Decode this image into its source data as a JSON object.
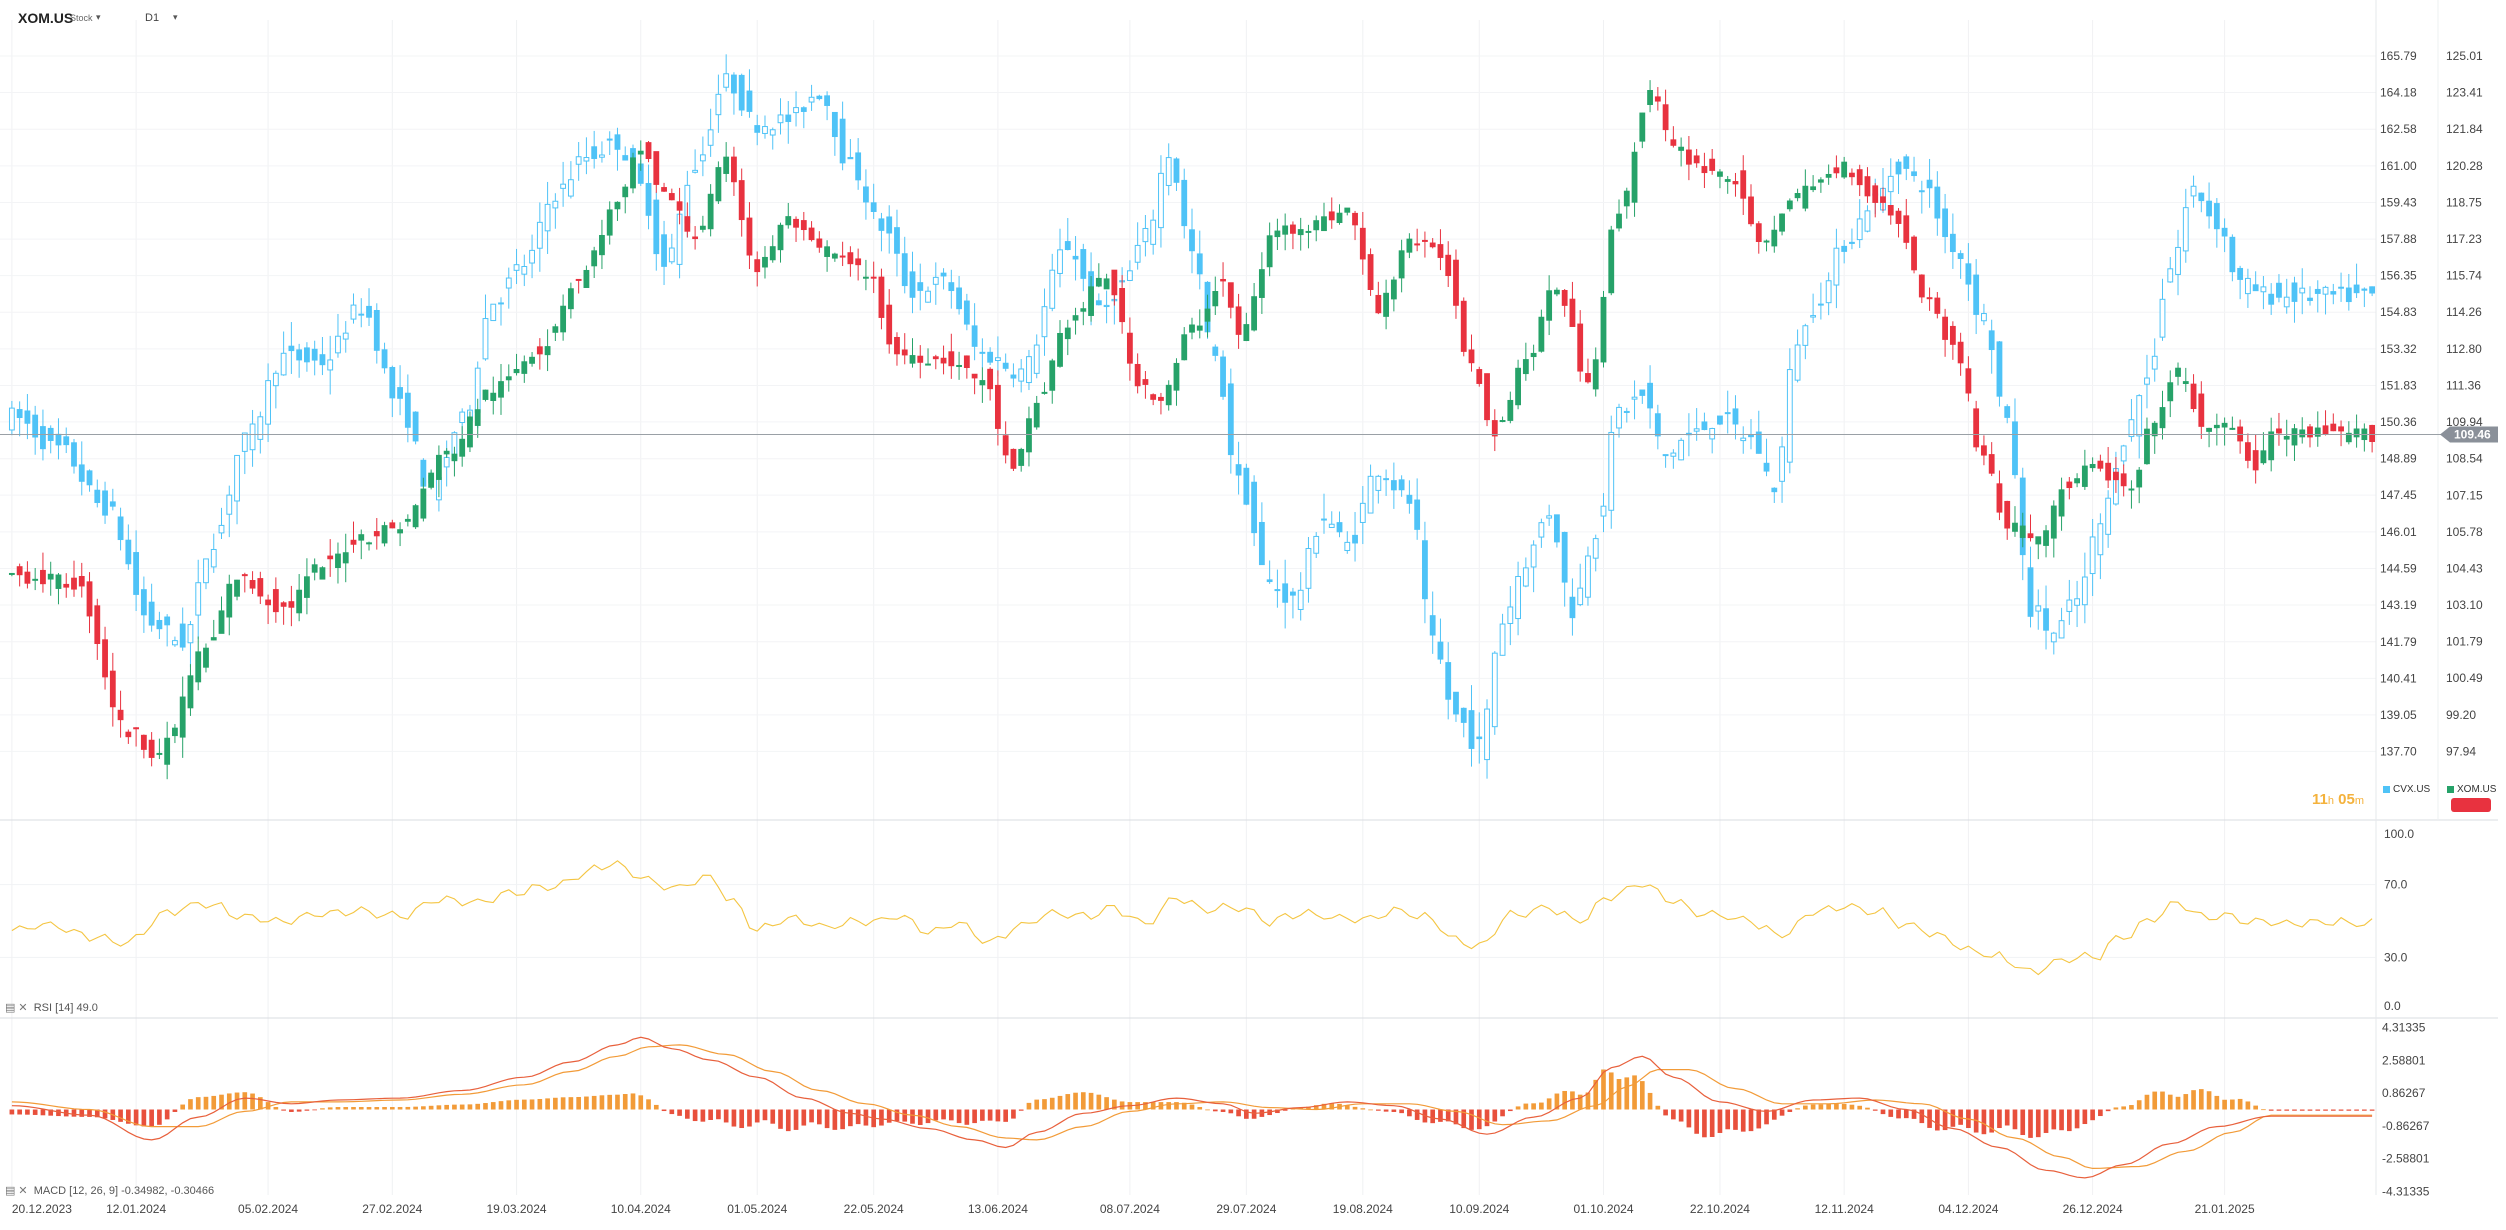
{
  "toolbar": {
    "symbol": "XOM.US",
    "type": "Stock",
    "interval": "D1"
  },
  "countdown": {
    "hours": "11",
    "h_unit": "h",
    "minutes": "05",
    "m_unit": "m"
  },
  "legend": [
    {
      "name": "CVX.US",
      "color": "#4fc3f7"
    },
    {
      "name": "XOM.US",
      "color": "#26a269"
    }
  ],
  "colors": {
    "up": "#26a269",
    "down": "#e8323f",
    "compare": "#4fc3f7",
    "rsi": "#f4c542",
    "macd_line": "#e8603c",
    "signal_line": "#f29b38",
    "hist_pos": "#f29b38",
    "hist_neg": "#e8503c",
    "last_price_bg": "#8a9099",
    "badge": "#e8323f"
  },
  "chart_data": [
    {
      "type": "candlestick",
      "pane": "price",
      "series": [
        {
          "name": "XOM.US",
          "axis": "right"
        },
        {
          "name": "CVX.US",
          "axis": "left",
          "style": "hollow"
        }
      ],
      "x_labels": [
        "20.12.2023",
        "12.01.2024",
        "05.02.2024",
        "27.02.2024",
        "19.03.2024",
        "10.04.2024",
        "01.05.2024",
        "22.05.2024",
        "13.06.2024",
        "08.07.2024",
        "29.07.2024",
        "19.08.2024",
        "10.09.2024",
        "01.10.2024",
        "22.10.2024",
        "12.11.2024",
        "04.12.2024",
        "26.12.2024",
        "21.01.2025"
      ],
      "x_label_day_index": [
        0,
        16,
        33,
        49,
        65,
        81,
        96,
        111,
        127,
        144,
        159,
        174,
        189,
        205,
        220,
        236,
        252,
        268,
        285
      ],
      "total_days": 305,
      "y_ticks_inner": [
        "165.79",
        "164.18",
        "162.58",
        "161.00",
        "159.43",
        "157.88",
        "156.35",
        "154.83",
        "153.32",
        "151.83",
        "150.36",
        "148.89",
        "147.45",
        "146.01",
        "144.59",
        "143.19",
        "141.79",
        "140.41",
        "139.05",
        "137.70"
      ],
      "y_ticks_outer": [
        "125.01",
        "123.41",
        "121.84",
        "120.28",
        "118.75",
        "117.23",
        "115.74",
        "114.26",
        "112.80",
        "111.36",
        "109.94",
        "108.54",
        "107.15",
        "105.78",
        "104.43",
        "103.10",
        "101.79",
        "100.49",
        "99.20",
        "97.94"
      ],
      "last_price": "109.46",
      "xom_close_anchors": [
        [
          0,
          104.2
        ],
        [
          8,
          103.9
        ],
        [
          15,
          98.6
        ],
        [
          19,
          97.9
        ],
        [
          25,
          101.5
        ],
        [
          29,
          104.1
        ],
        [
          35,
          103.0
        ],
        [
          40,
          104.5
        ],
        [
          45,
          105.6
        ],
        [
          50,
          106.0
        ],
        [
          56,
          108.7
        ],
        [
          62,
          111.2
        ],
        [
          68,
          112.8
        ],
        [
          73,
          115.6
        ],
        [
          78,
          118.6
        ],
        [
          81,
          121.0
        ],
        [
          84,
          119.1
        ],
        [
          88,
          117.4
        ],
        [
          92,
          120.4
        ],
        [
          96,
          116.0
        ],
        [
          100,
          118.0
        ],
        [
          104,
          116.8
        ],
        [
          110,
          115.9
        ],
        [
          114,
          112.6
        ],
        [
          120,
          112.4
        ],
        [
          125,
          111.6
        ],
        [
          129,
          108.0
        ],
        [
          132,
          110.7
        ],
        [
          136,
          113.8
        ],
        [
          141,
          115.7
        ],
        [
          145,
          111.6
        ],
        [
          148,
          110.8
        ],
        [
          152,
          113.6
        ],
        [
          156,
          115.5
        ],
        [
          158,
          113.3
        ],
        [
          163,
          117.6
        ],
        [
          167,
          117.8
        ],
        [
          172,
          118.4
        ],
        [
          176,
          114.4
        ],
        [
          180,
          117.2
        ],
        [
          184,
          116.6
        ],
        [
          188,
          112.3
        ],
        [
          191,
          109.6
        ],
        [
          195,
          112.4
        ],
        [
          199,
          115.3
        ],
        [
          203,
          111.6
        ],
        [
          207,
          118.4
        ],
        [
          211,
          123.5
        ],
        [
          214,
          121.0
        ],
        [
          218,
          120.2
        ],
        [
          222,
          119.7
        ],
        [
          225,
          116.9
        ],
        [
          229,
          118.7
        ],
        [
          232,
          119.5
        ],
        [
          236,
          120.3
        ],
        [
          240,
          118.9
        ],
        [
          243,
          118.0
        ],
        [
          246,
          115.1
        ],
        [
          250,
          113.0
        ],
        [
          254,
          108.6
        ],
        [
          257,
          106.0
        ],
        [
          261,
          105.6
        ],
        [
          265,
          107.6
        ],
        [
          268,
          108.2
        ],
        [
          273,
          107.3
        ],
        [
          276,
          110.1
        ],
        [
          279,
          111.8
        ],
        [
          283,
          109.5
        ],
        [
          286,
          109.8
        ],
        [
          289,
          108.1
        ],
        [
          291,
          109.46
        ]
      ],
      "cvx_close_anchors": [
        [
          0,
          150.6
        ],
        [
          6,
          149.3
        ],
        [
          12,
          147.0
        ],
        [
          18,
          142.5
        ],
        [
          22,
          141.8
        ],
        [
          26,
          145.7
        ],
        [
          30,
          149.6
        ],
        [
          35,
          153.0
        ],
        [
          40,
          152.8
        ],
        [
          45,
          155.0
        ],
        [
          50,
          151.0
        ],
        [
          54,
          147.6
        ],
        [
          58,
          150.4
        ],
        [
          62,
          155.3
        ],
        [
          66,
          156.8
        ],
        [
          70,
          159.8
        ],
        [
          74,
          161.4
        ],
        [
          78,
          162.0
        ],
        [
          81,
          160.1
        ],
        [
          84,
          156.7
        ],
        [
          88,
          161.0
        ],
        [
          92,
          164.7
        ],
        [
          96,
          162.8
        ],
        [
          100,
          163.0
        ],
        [
          104,
          164.2
        ],
        [
          108,
          161.0
        ],
        [
          112,
          158.4
        ],
        [
          116,
          155.7
        ],
        [
          120,
          156.1
        ],
        [
          125,
          153.1
        ],
        [
          130,
          152.4
        ],
        [
          136,
          157.6
        ],
        [
          140,
          154.8
        ],
        [
          143,
          156.0
        ],
        [
          146,
          158.0
        ],
        [
          149,
          161.5
        ],
        [
          152,
          157.3
        ],
        [
          155,
          152.8
        ],
        [
          158,
          148.0
        ],
        [
          162,
          144.0
        ],
        [
          165,
          143.4
        ],
        [
          169,
          146.6
        ],
        [
          172,
          145.5
        ],
        [
          176,
          148.5
        ],
        [
          180,
          147.2
        ],
        [
          183,
          141.7
        ],
        [
          186,
          139.0
        ],
        [
          189,
          137.9
        ],
        [
          192,
          142.6
        ],
        [
          195,
          144.9
        ],
        [
          198,
          146.8
        ],
        [
          201,
          143.0
        ],
        [
          204,
          146.1
        ],
        [
          207,
          150.8
        ],
        [
          210,
          151.4
        ],
        [
          213,
          149.0
        ],
        [
          216,
          149.8
        ],
        [
          220,
          150.5
        ],
        [
          224,
          149.7
        ],
        [
          227,
          147.8
        ],
        [
          230,
          153.7
        ],
        [
          233,
          155.5
        ],
        [
          236,
          157.7
        ],
        [
          240,
          159.6
        ],
        [
          243,
          161.0
        ],
        [
          246,
          160.2
        ],
        [
          250,
          157.6
        ],
        [
          254,
          154.6
        ],
        [
          257,
          150.2
        ],
        [
          260,
          143.1
        ],
        [
          263,
          142.1
        ],
        [
          266,
          143.4
        ],
        [
          269,
          146.3
        ],
        [
          272,
          149.7
        ],
        [
          275,
          152.1
        ],
        [
          278,
          156.7
        ],
        [
          281,
          160.0
        ],
        [
          284,
          158.6
        ],
        [
          287,
          156.0
        ],
        [
          291,
          155.5
        ]
      ]
    },
    {
      "type": "line",
      "pane": "indicator",
      "name": "RSI",
      "label": "RSI [14]",
      "value": "49.0",
      "y_ticks": [
        "100.0",
        "70.0",
        "30.0",
        "0.0"
      ],
      "ylim": [
        0,
        100
      ],
      "anchors": [
        [
          0,
          45
        ],
        [
          5,
          48
        ],
        [
          10,
          42
        ],
        [
          15,
          38
        ],
        [
          20,
          55
        ],
        [
          25,
          60
        ],
        [
          30,
          52
        ],
        [
          35,
          50
        ],
        [
          40,
          54
        ],
        [
          45,
          56
        ],
        [
          50,
          52
        ],
        [
          55,
          62
        ],
        [
          60,
          60
        ],
        [
          65,
          66
        ],
        [
          70,
          70
        ],
        [
          75,
          78
        ],
        [
          78,
          82
        ],
        [
          80,
          76
        ],
        [
          85,
          68
        ],
        [
          90,
          74
        ],
        [
          93,
          60
        ],
        [
          96,
          45
        ],
        [
          100,
          52
        ],
        [
          105,
          47
        ],
        [
          110,
          50
        ],
        [
          115,
          52
        ],
        [
          118,
          44
        ],
        [
          122,
          49
        ],
        [
          126,
          38
        ],
        [
          130,
          48
        ],
        [
          134,
          54
        ],
        [
          138,
          52
        ],
        [
          142,
          57
        ],
        [
          146,
          48
        ],
        [
          150,
          63
        ],
        [
          154,
          56
        ],
        [
          158,
          58
        ],
        [
          162,
          50
        ],
        [
          166,
          54
        ],
        [
          170,
          52
        ],
        [
          174,
          50
        ],
        [
          178,
          56
        ],
        [
          182,
          52
        ],
        [
          186,
          40
        ],
        [
          189,
          36
        ],
        [
          193,
          53
        ],
        [
          198,
          57
        ],
        [
          202,
          50
        ],
        [
          206,
          64
        ],
        [
          210,
          70
        ],
        [
          214,
          60
        ],
        [
          219,
          53
        ],
        [
          223,
          51
        ],
        [
          228,
          42
        ],
        [
          232,
          55
        ],
        [
          236,
          58
        ],
        [
          240,
          56
        ],
        [
          244,
          48
        ],
        [
          248,
          42
        ],
        [
          252,
          34
        ],
        [
          256,
          30
        ],
        [
          260,
          22
        ],
        [
          264,
          28
        ],
        [
          268,
          30
        ],
        [
          272,
          42
        ],
        [
          276,
          52
        ],
        [
          279,
          60
        ],
        [
          282,
          52
        ],
        [
          285,
          54
        ],
        [
          288,
          50
        ],
        [
          291,
          49
        ]
      ]
    },
    {
      "type": "line",
      "pane": "indicator",
      "name": "MACD",
      "label": "MACD [12, 26, 9]",
      "values_text": "-0.34982, -0.30466",
      "y_ticks": [
        "4.31335",
        "2.58801",
        "0.86267",
        "-0.86267",
        "-2.58801",
        "-4.31335"
      ],
      "ylim": [
        -4.5,
        4.5
      ],
      "macd_anchors": [
        [
          0,
          0.2
        ],
        [
          10,
          -0.3
        ],
        [
          18,
          -1.6
        ],
        [
          24,
          -0.4
        ],
        [
          30,
          0.6
        ],
        [
          36,
          0.3
        ],
        [
          42,
          0.5
        ],
        [
          50,
          0.6
        ],
        [
          58,
          1.0
        ],
        [
          66,
          1.7
        ],
        [
          72,
          2.5
        ],
        [
          78,
          3.4
        ],
        [
          81,
          3.8
        ],
        [
          85,
          3.2
        ],
        [
          90,
          2.6
        ],
        [
          96,
          1.7
        ],
        [
          102,
          0.6
        ],
        [
          108,
          -0.2
        ],
        [
          112,
          -0.5
        ],
        [
          118,
          -1.0
        ],
        [
          124,
          -1.6
        ],
        [
          128,
          -2.0
        ],
        [
          132,
          -1.2
        ],
        [
          138,
          -0.2
        ],
        [
          144,
          0.2
        ],
        [
          150,
          0.6
        ],
        [
          156,
          0.3
        ],
        [
          160,
          -0.2
        ],
        [
          166,
          0.1
        ],
        [
          172,
          0.4
        ],
        [
          178,
          0.2
        ],
        [
          184,
          -0.5
        ],
        [
          190,
          -1.3
        ],
        [
          196,
          -0.4
        ],
        [
          202,
          0.6
        ],
        [
          206,
          2.2
        ],
        [
          210,
          2.8
        ],
        [
          214,
          1.7
        ],
        [
          220,
          0.4
        ],
        [
          226,
          -0.1
        ],
        [
          232,
          0.5
        ],
        [
          238,
          0.6
        ],
        [
          244,
          0.0
        ],
        [
          250,
          -1.0
        ],
        [
          256,
          -2.0
        ],
        [
          262,
          -3.2
        ],
        [
          267,
          -3.6
        ],
        [
          272,
          -2.9
        ],
        [
          278,
          -1.8
        ],
        [
          284,
          -0.9
        ],
        [
          291,
          -0.35
        ]
      ],
      "signal_anchors": [
        [
          0,
          0.4
        ],
        [
          10,
          0.0
        ],
        [
          18,
          -0.9
        ],
        [
          24,
          -0.9
        ],
        [
          30,
          -0.1
        ],
        [
          36,
          0.4
        ],
        [
          42,
          0.4
        ],
        [
          50,
          0.5
        ],
        [
          58,
          0.8
        ],
        [
          66,
          1.3
        ],
        [
          72,
          2.0
        ],
        [
          78,
          2.8
        ],
        [
          82,
          3.3
        ],
        [
          86,
          3.4
        ],
        [
          92,
          2.9
        ],
        [
          98,
          2.0
        ],
        [
          104,
          1.0
        ],
        [
          110,
          0.3
        ],
        [
          116,
          -0.3
        ],
        [
          122,
          -0.9
        ],
        [
          128,
          -1.5
        ],
        [
          132,
          -1.6
        ],
        [
          138,
          -0.9
        ],
        [
          144,
          -0.1
        ],
        [
          150,
          0.3
        ],
        [
          156,
          0.4
        ],
        [
          162,
          0.1
        ],
        [
          168,
          0.0
        ],
        [
          174,
          0.3
        ],
        [
          180,
          0.3
        ],
        [
          186,
          -0.1
        ],
        [
          192,
          -0.8
        ],
        [
          198,
          -0.6
        ],
        [
          204,
          0.2
        ],
        [
          208,
          1.2
        ],
        [
          212,
          2.1
        ],
        [
          216,
          2.1
        ],
        [
          222,
          1.1
        ],
        [
          228,
          0.3
        ],
        [
          234,
          0.3
        ],
        [
          240,
          0.5
        ],
        [
          246,
          0.3
        ],
        [
          252,
          -0.5
        ],
        [
          258,
          -1.5
        ],
        [
          264,
          -2.5
        ],
        [
          268,
          -3.1
        ],
        [
          274,
          -3.0
        ],
        [
          280,
          -2.2
        ],
        [
          286,
          -1.2
        ],
        [
          291,
          -0.3
        ]
      ]
    }
  ]
}
